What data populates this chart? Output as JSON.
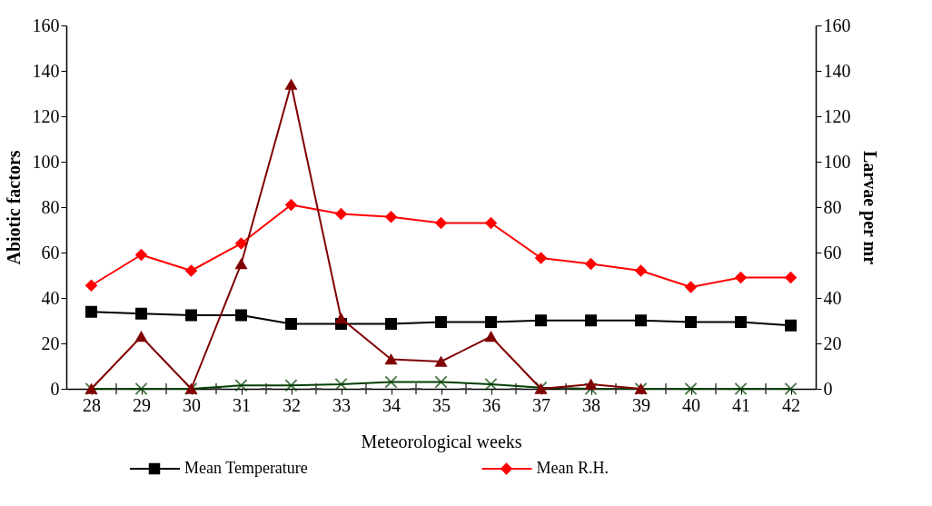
{
  "chart_data": {
    "type": "line",
    "xlabel": "Meteorological weeks",
    "ylabel": "Abiotic factors",
    "y2label": "Larvae per mr",
    "xlim": [
      27.5,
      42.5
    ],
    "xticks": [
      28,
      29,
      30,
      31,
      32,
      33,
      34,
      35,
      36,
      37,
      38,
      39,
      40,
      41,
      42
    ],
    "ylim": [
      0,
      160
    ],
    "yticks": [
      0,
      20,
      40,
      60,
      80,
      100,
      120,
      140,
      160
    ],
    "y2lim": [
      0,
      160
    ],
    "y2ticks": [
      0,
      20,
      40,
      60,
      80,
      100,
      120,
      140,
      160
    ],
    "grid": false,
    "legend": "bottom",
    "x": [
      28,
      29,
      30,
      31,
      32,
      33,
      34,
      35,
      36,
      37,
      38,
      39,
      40,
      41,
      42
    ],
    "series": [
      {
        "name": "Mean Temperature",
        "color": "#000000",
        "marker": "square",
        "values": [
          33.9,
          33.1,
          32.4,
          32.4,
          28.6,
          28.6,
          28.6,
          29.4,
          29.4,
          30.1,
          30.1,
          30.1,
          29.4,
          29.4,
          27.9
        ]
      },
      {
        "name": "Mean R.H.",
        "color": "#ff0000",
        "marker": "diamond",
        "values": [
          45.5,
          59,
          52,
          64,
          81,
          77,
          75.7,
          73,
          73,
          57.6,
          55,
          52,
          44.8,
          49,
          49
        ]
      },
      {
        "color": "#800000",
        "marker": "triangle",
        "axis": "y2",
        "values": [
          0,
          23,
          0,
          55,
          134,
          31,
          13,
          12,
          23,
          0,
          2,
          0,
          null,
          null,
          null
        ]
      },
      {
        "color": "#004000",
        "marker": "x",
        "values": [
          0,
          0,
          0,
          1.5,
          1.5,
          2,
          3,
          3,
          2,
          0.5,
          0,
          0,
          0,
          0,
          0
        ]
      },
      {
        "type": "scatter",
        "color": "#333333",
        "marker": "cross",
        "x": [
          28.5,
          29.5,
          30.5,
          31.5,
          32.5,
          33.5,
          34.5,
          35.5,
          36.5,
          37.5,
          38.5,
          39.5,
          40.5,
          41.5
        ],
        "values": [
          0,
          0,
          0,
          0,
          0,
          0,
          0,
          0,
          0,
          0,
          0,
          0,
          0,
          0
        ]
      }
    ]
  }
}
